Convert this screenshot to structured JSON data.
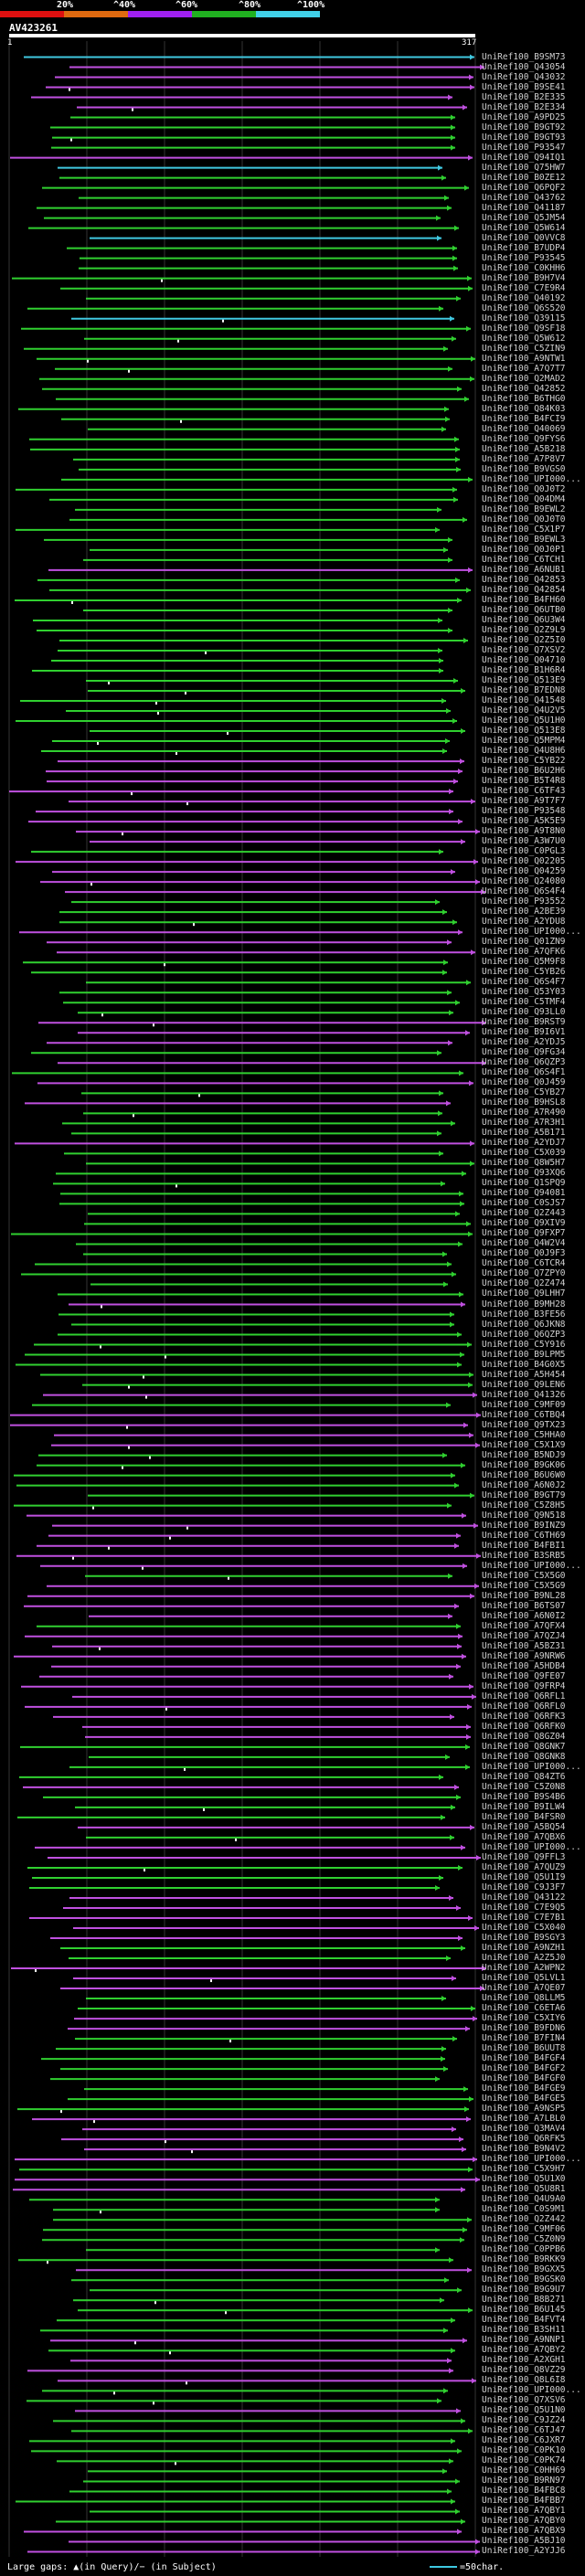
{
  "header": {
    "scale_labels": [
      "20%",
      "^40%",
      "^60%",
      "^80%",
      "^100%"
    ],
    "scale_colors": [
      "#e01010",
      "#e06a10",
      "#a020f0",
      "#20b020",
      "#40d0e8"
    ],
    "query_id": "AV423261",
    "query_start": "1",
    "query_end": "317"
  },
  "footer": {
    "large_gaps_text": "Large gaps: ▲(in Query)/− (in Subject)",
    "scale_text": "=50char."
  },
  "colors": {
    "cyan": "#40c8e0",
    "purple": "#c050e0",
    "green": "#30d030",
    "grid": "#333333",
    "white": "#ffffff"
  },
  "hits": [
    {
      "label": "UniRef100_B9SM73",
      "color": "cyan"
    },
    {
      "label": "UniRef100_Q43054",
      "color": "purple"
    },
    {
      "label": "UniRef100_Q43032",
      "color": "purple"
    },
    {
      "label": "UniRef100_B9SE41",
      "color": "purple"
    },
    {
      "label": "UniRef100_B2E335",
      "color": "purple"
    },
    {
      "label": "UniRef100_B2E334",
      "color": "purple"
    },
    {
      "label": "UniRef100_A9PD25",
      "color": "green"
    },
    {
      "label": "UniRef100_B9GT92",
      "color": "green"
    },
    {
      "label": "UniRef100_B9GT93",
      "color": "green"
    },
    {
      "label": "UniRef100_P93547",
      "color": "green"
    },
    {
      "label": "UniRef100_Q94IQ1",
      "color": "purple"
    },
    {
      "label": "UniRef100_Q75HW7",
      "color": "cyan"
    },
    {
      "label": "UniRef100_B0ZE12",
      "color": "green"
    },
    {
      "label": "UniRef100_Q6PQF2",
      "color": "green"
    },
    {
      "label": "UniRef100_Q43762",
      "color": "green"
    },
    {
      "label": "UniRef100_Q41187",
      "color": "green"
    },
    {
      "label": "UniRef100_Q5JM54",
      "color": "green"
    },
    {
      "label": "UniRef100_Q5W614",
      "color": "green"
    },
    {
      "label": "UniRef100_Q0VVC8",
      "color": "cyan"
    },
    {
      "label": "UniRef100_B7UDP4",
      "color": "green"
    },
    {
      "label": "UniRef100_P93545",
      "color": "green"
    },
    {
      "label": "UniRef100_C0KHH6",
      "color": "green"
    },
    {
      "label": "UniRef100_B9H7V4",
      "color": "green"
    },
    {
      "label": "UniRef100_C7E9R4",
      "color": "green"
    },
    {
      "label": "UniRef100_Q40192",
      "color": "green"
    },
    {
      "label": "UniRef100_Q6S520",
      "color": "green"
    },
    {
      "label": "UniRef100_Q39115",
      "color": "cyan"
    },
    {
      "label": "UniRef100_Q9SF18",
      "color": "green"
    },
    {
      "label": "UniRef100_Q5W612",
      "color": "green"
    },
    {
      "label": "UniRef100_C5ZIN9",
      "color": "green"
    },
    {
      "label": "UniRef100_A9NTW1",
      "color": "green"
    },
    {
      "label": "UniRef100_A7Q7T7",
      "color": "green"
    },
    {
      "label": "UniRef100_Q2MAD2",
      "color": "green"
    },
    {
      "label": "UniRef100_Q42852",
      "color": "green"
    },
    {
      "label": "UniRef100_B6THG0",
      "color": "green"
    },
    {
      "label": "UniRef100_Q84K03",
      "color": "green"
    },
    {
      "label": "UniRef100_B4FCI9",
      "color": "green"
    },
    {
      "label": "UniRef100_Q40069",
      "color": "green"
    },
    {
      "label": "UniRef100_Q9FYS6",
      "color": "green"
    },
    {
      "label": "UniRef100_A5B218",
      "color": "green"
    },
    {
      "label": "UniRef100_A7P8V7",
      "color": "green"
    },
    {
      "label": "UniRef100_B9VGS0",
      "color": "green"
    },
    {
      "label": "UniRef100_UPI000...",
      "color": "green"
    },
    {
      "label": "UniRef100_Q0J0T2",
      "color": "green"
    },
    {
      "label": "UniRef100_Q04DM4",
      "color": "green"
    },
    {
      "label": "UniRef100_B9EWL2",
      "color": "green"
    },
    {
      "label": "UniRef100_Q0J0T0",
      "color": "green"
    },
    {
      "label": "UniRef100_C5X1P7",
      "color": "green"
    },
    {
      "label": "UniRef100_B9EWL3",
      "color": "green"
    },
    {
      "label": "UniRef100_Q0J0P1",
      "color": "green"
    },
    {
      "label": "UniRef100_C6TCH1",
      "color": "green"
    },
    {
      "label": "UniRef100_A6NUB1",
      "color": "purple"
    },
    {
      "label": "UniRef100_Q42853",
      "color": "green"
    },
    {
      "label": "UniRef100_Q42854",
      "color": "green"
    },
    {
      "label": "UniRef100_B4FH60",
      "color": "green"
    },
    {
      "label": "UniRef100_Q6UTB0",
      "color": "green"
    },
    {
      "label": "UniRef100_Q6U3W4",
      "color": "green"
    },
    {
      "label": "UniRef100_Q2Z9L9",
      "color": "green"
    },
    {
      "label": "UniRef100_Q2Z5I0",
      "color": "green"
    },
    {
      "label": "UniRef100_Q7XSV2",
      "color": "green"
    },
    {
      "label": "UniRef100_Q04710",
      "color": "green"
    },
    {
      "label": "UniRef100_B1H6R4",
      "color": "green"
    },
    {
      "label": "UniRef100_Q513E9",
      "color": "green"
    },
    {
      "label": "UniRef100_B7EDN8",
      "color": "green"
    },
    {
      "label": "UniRef100_Q41548",
      "color": "green"
    },
    {
      "label": "UniRef100_Q4U2V5",
      "color": "green"
    },
    {
      "label": "UniRef100_Q5U1H0",
      "color": "green"
    },
    {
      "label": "UniRef100_Q513E8",
      "color": "green"
    },
    {
      "label": "UniRef100_Q5MPM4",
      "color": "green"
    },
    {
      "label": "UniRef100_Q4U8H6",
      "color": "green"
    },
    {
      "label": "UniRef100_C5YB22",
      "color": "purple"
    },
    {
      "label": "UniRef100_B6U2H6",
      "color": "purple"
    },
    {
      "label": "UniRef100_B5T4R8",
      "color": "purple"
    },
    {
      "label": "UniRef100_C6TF43",
      "color": "purple"
    },
    {
      "label": "UniRef100_A9T7F7",
      "color": "purple"
    },
    {
      "label": "UniRef100_P93548",
      "color": "purple"
    },
    {
      "label": "UniRef100_A5K5E9",
      "color": "purple"
    },
    {
      "label": "UniRef100_A9T8N0",
      "color": "purple"
    },
    {
      "label": "UniRef100_A3W7U0",
      "color": "purple"
    },
    {
      "label": "UniRef100_C0PGL3",
      "color": "green"
    },
    {
      "label": "UniRef100_Q02205",
      "color": "purple"
    },
    {
      "label": "UniRef100_Q04259",
      "color": "purple"
    },
    {
      "label": "UniRef100_Q24080",
      "color": "purple"
    },
    {
      "label": "UniRef100_Q6S4F4",
      "color": "purple"
    },
    {
      "label": "UniRef100_P93552",
      "color": "green"
    },
    {
      "label": "UniRef100_A2BE39",
      "color": "green"
    },
    {
      "label": "UniRef100_A2YDU8",
      "color": "green"
    },
    {
      "label": "UniRef100_UPI000...",
      "color": "purple"
    },
    {
      "label": "UniRef100_Q01ZN9",
      "color": "purple"
    },
    {
      "label": "UniRef100_A7QFK6",
      "color": "purple"
    },
    {
      "label": "UniRef100_Q5M9F8",
      "color": "green"
    },
    {
      "label": "UniRef100_C5YB26",
      "color": "green"
    },
    {
      "label": "UniRef100_Q6S4F7",
      "color": "green"
    },
    {
      "label": "UniRef100_Q53Y03",
      "color": "green"
    },
    {
      "label": "UniRef100_C5TMF4",
      "color": "green"
    },
    {
      "label": "UniRef100_Q93LL0",
      "color": "green"
    },
    {
      "label": "UniRef100_B9RST9",
      "color": "purple"
    },
    {
      "label": "UniRef100_B9I6V1",
      "color": "purple"
    },
    {
      "label": "UniRef100_A2YDJ5",
      "color": "purple"
    },
    {
      "label": "UniRef100_Q9FG34",
      "color": "green"
    },
    {
      "label": "UniRef100_Q6QZP3",
      "color": "purple"
    },
    {
      "label": "UniRef100_Q6S4F1",
      "color": "green"
    },
    {
      "label": "UniRef100_Q0J459",
      "color": "purple"
    },
    {
      "label": "UniRef100_C5YB27",
      "color": "green"
    },
    {
      "label": "UniRef100_B9HSL8",
      "color": "purple"
    },
    {
      "label": "UniRef100_A7R490",
      "color": "green"
    },
    {
      "label": "UniRef100_A7R3H1",
      "color": "green"
    },
    {
      "label": "UniRef100_A5B171",
      "color": "green"
    },
    {
      "label": "UniRef100_A2YDJ7",
      "color": "purple"
    },
    {
      "label": "UniRef100_C5X039",
      "color": "green"
    },
    {
      "label": "UniRef100_Q8W5H7",
      "color": "green"
    },
    {
      "label": "UniRef100_Q93XQ6",
      "color": "green"
    },
    {
      "label": "UniRef100_Q1SPQ9",
      "color": "green"
    },
    {
      "label": "UniRef100_Q94081",
      "color": "green"
    },
    {
      "label": "UniRef100_C0SJS7",
      "color": "green"
    },
    {
      "label": "UniRef100_Q2Z443",
      "color": "green"
    },
    {
      "label": "UniRef100_Q9XIV9",
      "color": "green"
    },
    {
      "label": "UniRef100_Q9FXP7",
      "color": "green"
    },
    {
      "label": "UniRef100_Q4W2V4",
      "color": "green"
    },
    {
      "label": "UniRef100_Q0J9F3",
      "color": "green"
    },
    {
      "label": "UniRef100_C6TCR4",
      "color": "green"
    },
    {
      "label": "UniRef100_Q7ZPY0",
      "color": "green"
    },
    {
      "label": "UniRef100_Q2Z474",
      "color": "green"
    },
    {
      "label": "UniRef100_Q9LHH7",
      "color": "green"
    },
    {
      "label": "UniRef100_B9MH28",
      "color": "purple"
    },
    {
      "label": "UniRef100_B3FE56",
      "color": "green"
    },
    {
      "label": "UniRef100_Q6JKN8",
      "color": "green"
    },
    {
      "label": "UniRef100_Q6QZP3",
      "color": "green"
    },
    {
      "label": "UniRef100_C5Y916",
      "color": "green"
    },
    {
      "label": "UniRef100_B9LPM5",
      "color": "green"
    },
    {
      "label": "UniRef100_B4G0X5",
      "color": "green"
    },
    {
      "label": "UniRef100_A5H454",
      "color": "green"
    },
    {
      "label": "UniRef100_Q9LEN6",
      "color": "green"
    },
    {
      "label": "UniRef100_Q41326",
      "color": "purple"
    },
    {
      "label": "UniRef100_C9MF09",
      "color": "green"
    },
    {
      "label": "UniRef100_C6TBQ4",
      "color": "purple"
    },
    {
      "label": "UniRef100_Q9TX23",
      "color": "purple"
    },
    {
      "label": "UniRef100_C5HHA0",
      "color": "purple"
    },
    {
      "label": "UniRef100_C5X1X9",
      "color": "purple"
    },
    {
      "label": "UniRef100_B5NDJ9",
      "color": "green"
    },
    {
      "label": "UniRef100_B9GK06",
      "color": "green"
    },
    {
      "label": "UniRef100_B6U6W0",
      "color": "green"
    },
    {
      "label": "UniRef100_A6N0J2",
      "color": "green"
    },
    {
      "label": "UniRef100_B9GT79",
      "color": "green"
    },
    {
      "label": "UniRef100_C5Z8H5",
      "color": "green"
    },
    {
      "label": "UniRef100_Q9N518",
      "color": "purple"
    },
    {
      "label": "UniRef100_B9INZ9",
      "color": "purple"
    },
    {
      "label": "UniRef100_C6TH69",
      "color": "purple"
    },
    {
      "label": "UniRef100_B4FBI1",
      "color": "purple"
    },
    {
      "label": "UniRef100_B3SRB5",
      "color": "purple"
    },
    {
      "label": "UniRef100_UPI000...",
      "color": "purple"
    },
    {
      "label": "UniRef100_C5X5G0",
      "color": "green"
    },
    {
      "label": "UniRef100_C5X5G9",
      "color": "purple"
    },
    {
      "label": "UniRef100_B9NL28",
      "color": "purple"
    },
    {
      "label": "UniRef100_B6TS07",
      "color": "purple"
    },
    {
      "label": "UniRef100_A6N0I2",
      "color": "purple"
    },
    {
      "label": "UniRef100_A7QFX4",
      "color": "green"
    },
    {
      "label": "UniRef100_A7QZJ4",
      "color": "purple"
    },
    {
      "label": "UniRef100_A5BZ31",
      "color": "purple"
    },
    {
      "label": "UniRef100_A9NRW6",
      "color": "purple"
    },
    {
      "label": "UniRef100_A5HDB4",
      "color": "purple"
    },
    {
      "label": "UniRef100_Q9FE07",
      "color": "purple"
    },
    {
      "label": "UniRef100_Q9FRP4",
      "color": "purple"
    },
    {
      "label": "UniRef100_Q6RFL1",
      "color": "purple"
    },
    {
      "label": "UniRef100_Q6RFL0",
      "color": "purple"
    },
    {
      "label": "UniRef100_Q6RFK3",
      "color": "purple"
    },
    {
      "label": "UniRef100_Q6RFK0",
      "color": "purple"
    },
    {
      "label": "UniRef100_Q8GZ04",
      "color": "purple"
    },
    {
      "label": "UniRef100_Q8GNK7",
      "color": "green"
    },
    {
      "label": "UniRef100_Q8GNK8",
      "color": "green"
    },
    {
      "label": "UniRef100_UPI000...",
      "color": "green"
    },
    {
      "label": "UniRef100_Q84ZT6",
      "color": "green"
    },
    {
      "label": "UniRef100_C5Z0N8",
      "color": "purple"
    },
    {
      "label": "UniRef100_B9S4B6",
      "color": "green"
    },
    {
      "label": "UniRef100_B9ILW4",
      "color": "green"
    },
    {
      "label": "UniRef100_B4FSR0",
      "color": "green"
    },
    {
      "label": "UniRef100_A5BQ54",
      "color": "purple"
    },
    {
      "label": "UniRef100_A7QBX6",
      "color": "green"
    },
    {
      "label": "UniRef100_UPI000...",
      "color": "purple"
    },
    {
      "label": "UniRef100_Q9FFL3",
      "color": "purple"
    },
    {
      "label": "UniRef100_A7QUZ9",
      "color": "green"
    },
    {
      "label": "UniRef100_Q5U1I9",
      "color": "green"
    },
    {
      "label": "UniRef100_C9J3F7",
      "color": "green"
    },
    {
      "label": "UniRef100_Q43122",
      "color": "purple"
    },
    {
      "label": "UniRef100_C7E9Q5",
      "color": "purple"
    },
    {
      "label": "UniRef100_C7E7B1",
      "color": "purple"
    },
    {
      "label": "UniRef100_C5X040",
      "color": "purple"
    },
    {
      "label": "UniRef100_B9SGY3",
      "color": "purple"
    },
    {
      "label": "UniRef100_A9NZH1",
      "color": "green"
    },
    {
      "label": "UniRef100_A2Z5J0",
      "color": "green"
    },
    {
      "label": "UniRef100_A2WPN2",
      "color": "purple"
    },
    {
      "label": "UniRef100_Q5LVL1",
      "color": "purple"
    },
    {
      "label": "UniRef100_A7QE07",
      "color": "purple"
    },
    {
      "label": "UniRef100_Q8LLM5",
      "color": "green"
    },
    {
      "label": "UniRef100_C6ETA6",
      "color": "green"
    },
    {
      "label": "UniRef100_C5XIY6",
      "color": "purple"
    },
    {
      "label": "UniRef100_B9FDN6",
      "color": "purple"
    },
    {
      "label": "UniRef100_B7FIN4",
      "color": "green"
    },
    {
      "label": "UniRef100_B6UUT8",
      "color": "green"
    },
    {
      "label": "UniRef100_B4FGF4",
      "color": "green"
    },
    {
      "label": "UniRef100_B4FGF2",
      "color": "green"
    },
    {
      "label": "UniRef100_B4FGF0",
      "color": "green"
    },
    {
      "label": "UniRef100_B4FGE9",
      "color": "green"
    },
    {
      "label": "UniRef100_B4FGE5",
      "color": "green"
    },
    {
      "label": "UniRef100_A9NSP5",
      "color": "green"
    },
    {
      "label": "UniRef100_A7LBL0",
      "color": "purple"
    },
    {
      "label": "UniRef100_Q3MAV4",
      "color": "purple"
    },
    {
      "label": "UniRef100_Q6RFK5",
      "color": "purple"
    },
    {
      "label": "UniRef100_B9N4V2",
      "color": "purple"
    },
    {
      "label": "UniRef100_UPI000...",
      "color": "purple"
    },
    {
      "label": "UniRef100_C5X9H7",
      "color": "green"
    },
    {
      "label": "UniRef100_Q5U1X0",
      "color": "purple"
    },
    {
      "label": "UniRef100_Q5U8R1",
      "color": "purple"
    },
    {
      "label": "UniRef100_Q4U9A0",
      "color": "green"
    },
    {
      "label": "UniRef100_C0S9M1",
      "color": "green"
    },
    {
      "label": "UniRef100_Q2Z442",
      "color": "green"
    },
    {
      "label": "UniRef100_C9MF06",
      "color": "green"
    },
    {
      "label": "UniRef100_C5Z0N9",
      "color": "green"
    },
    {
      "label": "UniRef100_C0PPB6",
      "color": "green"
    },
    {
      "label": "UniRef100_B9RKK9",
      "color": "green"
    },
    {
      "label": "UniRef100_B9GXX5",
      "color": "purple"
    },
    {
      "label": "UniRef100_B9GSK0",
      "color": "green"
    },
    {
      "label": "UniRef100_B9G9U7",
      "color": "green"
    },
    {
      "label": "UniRef100_B8B271",
      "color": "green"
    },
    {
      "label": "UniRef100_B6U145",
      "color": "green"
    },
    {
      "label": "UniRef100_B4FVT4",
      "color": "green"
    },
    {
      "label": "UniRef100_B3SH11",
      "color": "green"
    },
    {
      "label": "UniRef100_A9NNP1",
      "color": "purple"
    },
    {
      "label": "UniRef100_A7QBY2",
      "color": "green"
    },
    {
      "label": "UniRef100_A2XGH1",
      "color": "purple"
    },
    {
      "label": "UniRef100_Q8VZ29",
      "color": "purple"
    },
    {
      "label": "UniRef100_Q8L6I8",
      "color": "purple"
    },
    {
      "label": "UniRef100_UPI000...",
      "color": "green"
    },
    {
      "label": "UniRef100_Q7XSV6",
      "color": "green"
    },
    {
      "label": "UniRef100_Q5U1N0",
      "color": "purple"
    },
    {
      "label": "UniRef100_C9JZ24",
      "color": "green"
    },
    {
      "label": "UniRef100_C6TJ47",
      "color": "green"
    },
    {
      "label": "UniRef100_C6JXR7",
      "color": "green"
    },
    {
      "label": "UniRef100_C0PK10",
      "color": "green"
    },
    {
      "label": "UniRef100_C0PK74",
      "color": "green"
    },
    {
      "label": "UniRef100_C0HH69",
      "color": "green"
    },
    {
      "label": "UniRef100_B9RN97",
      "color": "green"
    },
    {
      "label": "UniRef100_B4FBC8",
      "color": "green"
    },
    {
      "label": "UniRef100_B4FBB7",
      "color": "green"
    },
    {
      "label": "UniRef100_A7QBY1",
      "color": "green"
    },
    {
      "label": "UniRef100_A7QBY0",
      "color": "green"
    },
    {
      "label": "UniRef100_A7QBX9",
      "color": "purple"
    },
    {
      "label": "UniRef100_A5BJ10",
      "color": "purple"
    },
    {
      "label": "UniRef100_A2YJJ6",
      "color": "purple"
    }
  ]
}
